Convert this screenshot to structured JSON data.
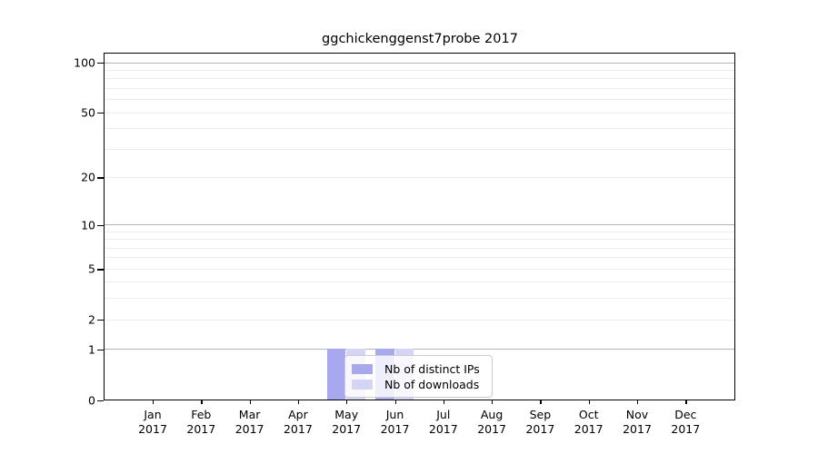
{
  "title": "ggchickenggenst7probe 2017",
  "colors": {
    "distinct_ips": "#a8a8ee",
    "downloads": "#d4d4f4",
    "grid_major": "#b4b4b4",
    "grid_minor": "#ececec",
    "axis": "#000000",
    "legend_border": "#cccccc"
  },
  "legend": {
    "items": [
      {
        "label": "Nb of distinct IPs",
        "color_key": "distinct_ips"
      },
      {
        "label": "Nb of downloads",
        "color_key": "downloads"
      }
    ]
  },
  "axes": {
    "y_major_decades": [
      1,
      10,
      100
    ],
    "y_labeled_ticks": [
      0,
      1,
      2,
      5,
      10,
      20,
      50,
      100
    ],
    "y_minor_ticks": [
      3,
      4,
      6,
      7,
      8,
      9,
      30,
      40,
      60,
      70,
      80,
      90
    ],
    "x_ticks": [
      {
        "month": "Jan",
        "year": "2017"
      },
      {
        "month": "Feb",
        "year": "2017"
      },
      {
        "month": "Mar",
        "year": "2017"
      },
      {
        "month": "Apr",
        "year": "2017"
      },
      {
        "month": "May",
        "year": "2017"
      },
      {
        "month": "Jun",
        "year": "2017"
      },
      {
        "month": "Jul",
        "year": "2017"
      },
      {
        "month": "Aug",
        "year": "2017"
      },
      {
        "month": "Sep",
        "year": "2017"
      },
      {
        "month": "Oct",
        "year": "2017"
      },
      {
        "month": "Nov",
        "year": "2017"
      },
      {
        "month": "Dec",
        "year": "2017"
      }
    ]
  },
  "chart_data": {
    "type": "bar",
    "title": "ggchickenggenst7probe 2017",
    "categories": [
      "Jan 2017",
      "Feb 2017",
      "Mar 2017",
      "Apr 2017",
      "May 2017",
      "Jun 2017",
      "Jul 2017",
      "Aug 2017",
      "Sep 2017",
      "Oct 2017",
      "Nov 2017",
      "Dec 2017"
    ],
    "series": [
      {
        "name": "Nb of distinct IPs",
        "key": "distinct_ips",
        "color": "#a8a8ee",
        "values": [
          0,
          0,
          0,
          0,
          1,
          1,
          0,
          0,
          0,
          0,
          0,
          0
        ]
      },
      {
        "name": "Nb of downloads",
        "key": "downloads",
        "color": "#d4d4f4",
        "values": [
          0,
          0,
          0,
          0,
          1,
          1,
          0,
          0,
          0,
          0,
          0,
          0
        ]
      }
    ],
    "xlabel": "",
    "ylabel": "",
    "yscale": "log1p",
    "y_ticks": [
      0,
      1,
      2,
      5,
      10,
      20,
      50,
      100
    ],
    "ylim": [
      0,
      115
    ],
    "grid": true,
    "legend_position": "inside lower-center"
  }
}
